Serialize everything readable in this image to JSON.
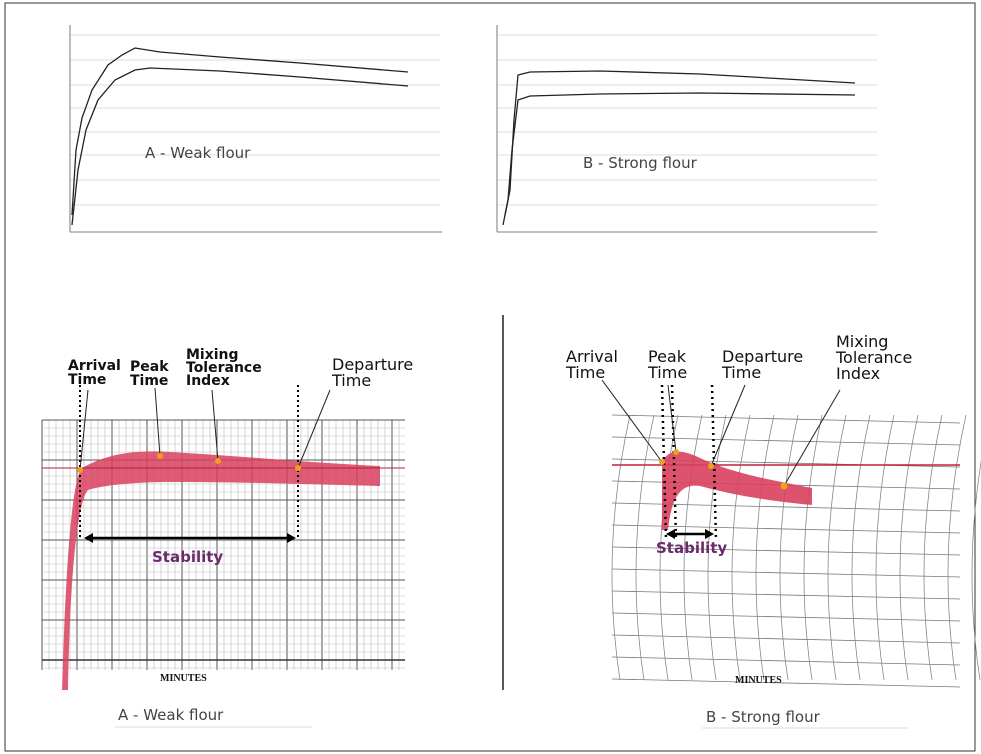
{
  "top_panels": [
    {
      "label": "A - Weak flour"
    },
    {
      "label": "B - Strong flour"
    }
  ],
  "bottom_panels": [
    {
      "arrival_time": [
        "Arrival",
        "Time"
      ],
      "peak_time": [
        "Peak",
        "Time"
      ],
      "mixing_tolerance_index": [
        "Mixing",
        "Tolerance",
        "Index"
      ],
      "departure_time": [
        "Departure",
        "Time"
      ],
      "stability": "Stability",
      "axis_label": "MINUTES",
      "caption": "A - Weak flour"
    },
    {
      "arrival_time": [
        "Arrival",
        "Time"
      ],
      "peak_time": [
        "Peak",
        "Time"
      ],
      "mixing_tolerance_index": [
        "Mixing",
        "Tolerance",
        "Index"
      ],
      "departure_time": [
        "Departure",
        "Time"
      ],
      "stability": "Stability",
      "axis_label": "MINUTES",
      "caption": "B - Strong flour"
    }
  ]
}
